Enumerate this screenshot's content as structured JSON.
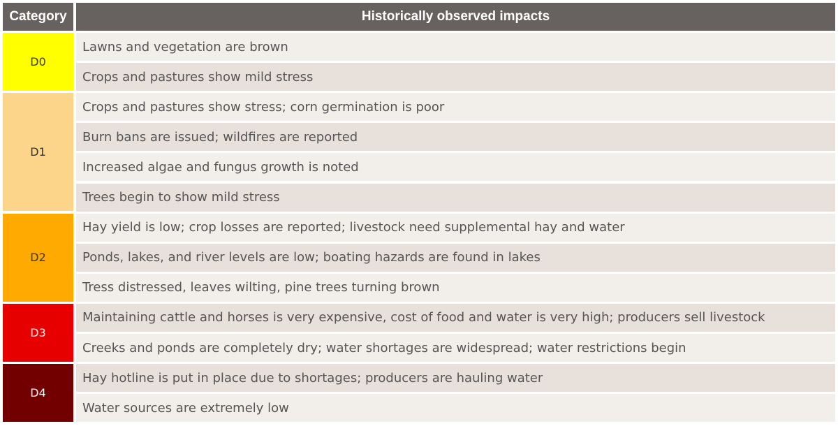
{
  "table": {
    "headers": {
      "category": "Category",
      "impacts": "Historically observed impacts"
    },
    "categories": [
      {
        "label": "D0",
        "color": "#ffff00",
        "text_color": "#333333",
        "impacts": [
          "Lawns and vegetation are brown",
          "Crops and pastures show mild stress"
        ]
      },
      {
        "label": "D1",
        "color": "#fdd58a",
        "text_color": "#333333",
        "impacts": [
          "Crops and pastures show stress; corn germination is poor",
          "Burn bans are issued; wildfires are reported",
          "Increased algae and fungus growth is noted",
          "Trees begin to show mild stress"
        ]
      },
      {
        "label": "D2",
        "color": "#ffaa00",
        "text_color": "#333333",
        "impacts": [
          "Hay yield is low; crop losses are reported; livestock need supplemental hay and water",
          "Ponds, lakes, and river levels are low; boating hazards are found in lakes",
          "Tress distressed, leaves wilting, pine trees turning brown"
        ]
      },
      {
        "label": "D3",
        "color": "#e60000",
        "text_color": "#ffffff",
        "impacts": [
          "Maintaining cattle and horses is very expensive, cost of food and water is very high; producers sell livestock",
          "Creeks and ponds are completely dry; water shortages are widespread; water restrictions begin"
        ]
      },
      {
        "label": "D4",
        "color": "#730000",
        "text_color": "#ffffff",
        "impacts": [
          "Hay hotline is put in place due to shortages; producers are hauling water",
          "Water sources are extremely low"
        ]
      }
    ]
  }
}
